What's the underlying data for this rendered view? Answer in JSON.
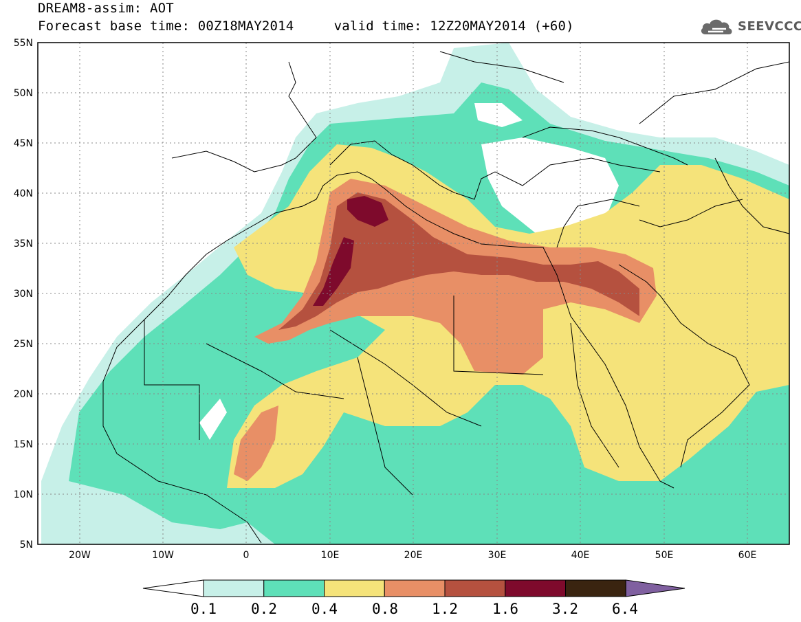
{
  "title": {
    "line1": "DREAM8-assim: AOT",
    "line2": "Forecast base time: 00Z18MAY2014     valid time: 12Z20MAY2014 (+60)"
  },
  "logo": {
    "text": "SEEVCCC",
    "icon": "cloud-icon"
  },
  "map": {
    "lon_range": [
      -25,
      65
    ],
    "lat_range": [
      5,
      55
    ],
    "lat_ticks": [
      "55N",
      "50N",
      "45N",
      "40N",
      "35N",
      "30N",
      "25N",
      "20N",
      "15N",
      "10N",
      "5N"
    ],
    "lon_ticks": [
      "20W",
      "10W",
      "0",
      "10E",
      "20E",
      "30E",
      "40E",
      "50E",
      "60E"
    ],
    "grid": "dashed"
  },
  "legend": {
    "labels": [
      "0.1",
      "0.2",
      "0.4",
      "0.8",
      "1.2",
      "1.6",
      "3.2",
      "6.4"
    ],
    "colors": [
      "#ffffff",
      "#c7f0e8",
      "#5ee0b8",
      "#f5e37a",
      "#e88f66",
      "#b5513f",
      "#7e0a2c",
      "#3a2410",
      "#8060a0"
    ]
  },
  "chart_data": {
    "type": "heatmap",
    "variable": "AOT",
    "levels": [
      0.1,
      0.2,
      0.4,
      0.8,
      1.2,
      1.6,
      3.2,
      6.4
    ],
    "level_colors": [
      "#c7f0e8",
      "#5ee0b8",
      "#f5e37a",
      "#e88f66",
      "#b5513f",
      "#7e0a2c",
      "#3a2410",
      "#8060a0"
    ]
  }
}
